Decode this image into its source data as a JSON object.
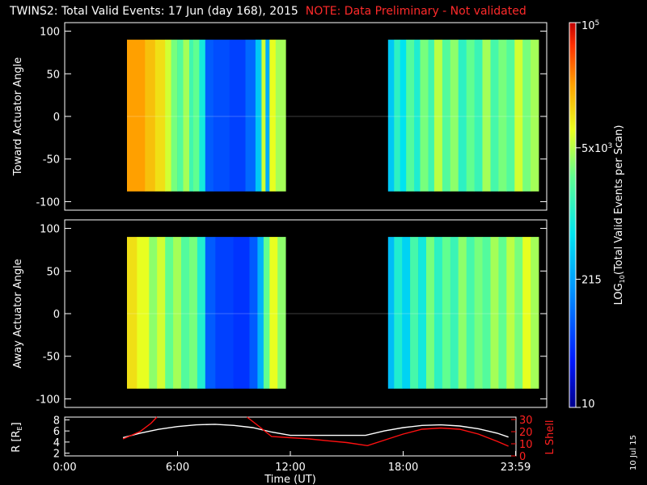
{
  "header": {
    "title": "TWINS2: Total Valid Events: 17 Jun (day 168), 2015",
    "note": "NOTE: Data Preliminary - Not validated"
  },
  "colors": {
    "background": "#000000",
    "note": "#ff2020",
    "lshell": "#ff1010",
    "radius": "#ffffff"
  },
  "side_label": "10 Jul 15",
  "chart_data": [
    {
      "type": "heatmap",
      "name": "toward",
      "ylabel": "Toward Actuator Angle",
      "ylim": [
        -110,
        110
      ],
      "yticks": [
        100,
        50,
        0,
        -50,
        -100
      ],
      "xlim": [
        0,
        24
      ],
      "data_extent": {
        "angle": [
          -88,
          90
        ]
      },
      "gaps": [
        [
          0,
          3.1
        ],
        [
          11.0,
          16.1
        ],
        [
          23.6,
          24
        ]
      ],
      "columns": [
        {
          "t0": 3.1,
          "t1": 4.0,
          "level": 0.84
        },
        {
          "t0": 4.0,
          "t1": 4.5,
          "level": 0.8
        },
        {
          "t0": 4.5,
          "t1": 5.0,
          "level": 0.76
        },
        {
          "t0": 5.0,
          "t1": 5.3,
          "level": 0.7
        },
        {
          "t0": 5.3,
          "t1": 5.6,
          "level": 0.62
        },
        {
          "t0": 5.6,
          "t1": 5.9,
          "level": 0.58
        },
        {
          "t0": 5.9,
          "t1": 6.2,
          "level": 0.66
        },
        {
          "t0": 6.2,
          "t1": 6.4,
          "level": 0.55
        },
        {
          "t0": 6.4,
          "t1": 6.7,
          "level": 0.6
        },
        {
          "t0": 6.7,
          "t1": 7.0,
          "level": 0.48
        },
        {
          "t0": 7.0,
          "t1": 7.4,
          "level": 0.22
        },
        {
          "t0": 7.4,
          "t1": 8.2,
          "level": 0.2
        },
        {
          "t0": 8.2,
          "t1": 9.0,
          "level": 0.18
        },
        {
          "t0": 9.0,
          "t1": 9.5,
          "level": 0.24
        },
        {
          "t0": 9.5,
          "t1": 9.8,
          "level": 0.4
        },
        {
          "t0": 9.8,
          "t1": 10.0,
          "level": 0.7
        },
        {
          "t0": 10.0,
          "t1": 10.2,
          "level": 0.35
        },
        {
          "t0": 10.2,
          "t1": 10.5,
          "level": 0.72
        },
        {
          "t0": 10.5,
          "t1": 11.0,
          "level": 0.66
        },
        {
          "t0": 16.1,
          "t1": 16.4,
          "level": 0.4
        },
        {
          "t0": 16.4,
          "t1": 16.7,
          "level": 0.52
        },
        {
          "t0": 16.7,
          "t1": 17.0,
          "level": 0.45
        },
        {
          "t0": 17.0,
          "t1": 17.4,
          "level": 0.58
        },
        {
          "t0": 17.4,
          "t1": 17.7,
          "level": 0.5
        },
        {
          "t0": 17.7,
          "t1": 18.1,
          "level": 0.62
        },
        {
          "t0": 18.1,
          "t1": 18.4,
          "level": 0.55
        },
        {
          "t0": 18.4,
          "t1": 18.8,
          "level": 0.68
        },
        {
          "t0": 18.8,
          "t1": 19.2,
          "level": 0.58
        },
        {
          "t0": 19.2,
          "t1": 19.6,
          "level": 0.64
        },
        {
          "t0": 19.6,
          "t1": 20.0,
          "level": 0.52
        },
        {
          "t0": 20.0,
          "t1": 20.4,
          "level": 0.6
        },
        {
          "t0": 20.4,
          "t1": 20.8,
          "level": 0.54
        },
        {
          "t0": 20.8,
          "t1": 21.2,
          "level": 0.66
        },
        {
          "t0": 21.2,
          "t1": 21.6,
          "level": 0.56
        },
        {
          "t0": 21.6,
          "t1": 22.0,
          "level": 0.62
        },
        {
          "t0": 22.0,
          "t1": 22.4,
          "level": 0.58
        },
        {
          "t0": 22.4,
          "t1": 22.8,
          "level": 0.7
        },
        {
          "t0": 22.8,
          "t1": 23.2,
          "level": 0.62
        },
        {
          "t0": 23.2,
          "t1": 23.6,
          "level": 0.66
        }
      ]
    },
    {
      "type": "heatmap",
      "name": "away",
      "ylabel": "Away Actuator Angle",
      "ylim": [
        -110,
        110
      ],
      "yticks": [
        100,
        50,
        0,
        -50,
        -100
      ],
      "xlim": [
        0,
        24
      ],
      "data_extent": {
        "angle": [
          -88,
          90
        ]
      },
      "gaps": [
        [
          0,
          3.1
        ],
        [
          11.0,
          16.1
        ],
        [
          23.6,
          24
        ]
      ],
      "columns": [
        {
          "t0": 3.1,
          "t1": 3.6,
          "level": 0.76
        },
        {
          "t0": 3.6,
          "t1": 4.2,
          "level": 0.72
        },
        {
          "t0": 4.2,
          "t1": 4.6,
          "level": 0.64
        },
        {
          "t0": 4.6,
          "t1": 5.0,
          "level": 0.7
        },
        {
          "t0": 5.0,
          "t1": 5.4,
          "level": 0.6
        },
        {
          "t0": 5.4,
          "t1": 5.8,
          "level": 0.66
        },
        {
          "t0": 5.8,
          "t1": 6.2,
          "level": 0.58
        },
        {
          "t0": 6.2,
          "t1": 6.6,
          "level": 0.62
        },
        {
          "t0": 6.6,
          "t1": 7.0,
          "level": 0.5
        },
        {
          "t0": 7.0,
          "t1": 7.5,
          "level": 0.22
        },
        {
          "t0": 7.5,
          "t1": 8.4,
          "level": 0.18
        },
        {
          "t0": 8.4,
          "t1": 9.2,
          "level": 0.16
        },
        {
          "t0": 9.2,
          "t1": 9.6,
          "level": 0.22
        },
        {
          "t0": 9.6,
          "t1": 9.9,
          "level": 0.36
        },
        {
          "t0": 9.9,
          "t1": 10.2,
          "level": 0.6
        },
        {
          "t0": 10.2,
          "t1": 10.6,
          "level": 0.72
        },
        {
          "t0": 10.6,
          "t1": 11.0,
          "level": 0.64
        },
        {
          "t0": 16.1,
          "t1": 16.4,
          "level": 0.38
        },
        {
          "t0": 16.4,
          "t1": 16.8,
          "level": 0.5
        },
        {
          "t0": 16.8,
          "t1": 17.2,
          "level": 0.42
        },
        {
          "t0": 17.2,
          "t1": 17.6,
          "level": 0.56
        },
        {
          "t0": 17.6,
          "t1": 18.0,
          "level": 0.48
        },
        {
          "t0": 18.0,
          "t1": 18.4,
          "level": 0.62
        },
        {
          "t0": 18.4,
          "t1": 18.8,
          "level": 0.52
        },
        {
          "t0": 18.8,
          "t1": 19.2,
          "level": 0.6
        },
        {
          "t0": 19.2,
          "t1": 19.6,
          "level": 0.54
        },
        {
          "t0": 19.6,
          "t1": 20.0,
          "level": 0.64
        },
        {
          "t0": 20.0,
          "t1": 20.4,
          "level": 0.56
        },
        {
          "t0": 20.4,
          "t1": 20.8,
          "level": 0.62
        },
        {
          "t0": 20.8,
          "t1": 21.2,
          "level": 0.58
        },
        {
          "t0": 21.2,
          "t1": 21.6,
          "level": 0.66
        },
        {
          "t0": 21.6,
          "t1": 22.0,
          "level": 0.6
        },
        {
          "t0": 22.0,
          "t1": 22.4,
          "level": 0.68
        },
        {
          "t0": 22.4,
          "t1": 22.8,
          "level": 0.62
        },
        {
          "t0": 22.8,
          "t1": 23.2,
          "level": 0.72
        },
        {
          "t0": 23.2,
          "t1": 23.6,
          "level": 0.66
        }
      ]
    },
    {
      "type": "line",
      "name": "orbit",
      "xlabel": "Time (UT)",
      "xticks": [
        "0:00",
        "6:00",
        "12:00",
        "18:00",
        "23:59"
      ],
      "xtick_values": [
        0,
        6,
        12,
        18,
        23.98
      ],
      "xlim": [
        0,
        24
      ],
      "ylabel_left": "R [R",
      "ylabel_left_sub": "E",
      "ylabel_left_close": "]",
      "ylim_left": [
        1.5,
        8.5
      ],
      "yticks_left": [
        8,
        6,
        4,
        2
      ],
      "ylabel_right": "L Shell",
      "ylim_right": [
        0,
        32
      ],
      "yticks_right": [
        30,
        20,
        10,
        0
      ],
      "series": [
        {
          "name": "R",
          "axis": "left",
          "x": [
            3.1,
            4,
            5,
            6,
            7,
            8,
            9,
            10,
            11,
            12,
            13,
            14,
            15,
            16,
            17,
            18,
            19,
            20,
            21,
            22,
            23,
            23.6
          ],
          "y": [
            4.8,
            5.6,
            6.3,
            6.8,
            7.1,
            7.2,
            7.0,
            6.6,
            5.8,
            5.2,
            5.2,
            5.2,
            5.2,
            5.2,
            6.0,
            6.6,
            7.0,
            7.1,
            6.9,
            6.4,
            5.6,
            4.9
          ]
        },
        {
          "name": "L Shell",
          "axis": "right",
          "x": [
            3.1,
            4,
            4.6,
            4.9,
            null,
            9.7,
            10.2,
            11.0,
            12,
            13,
            14,
            15,
            16.1,
            17,
            18,
            19,
            20,
            21,
            22,
            23,
            23.6
          ],
          "y": [
            14,
            20,
            27,
            32,
            null,
            32,
            26,
            16,
            15,
            14,
            12.5,
            11,
            8.5,
            13,
            18,
            22,
            23,
            22,
            18,
            12,
            8
          ]
        }
      ]
    }
  ],
  "colorbar": {
    "label_main": "LOG",
    "label_sub": "10",
    "label_rest": "(Total Valid Events per Scan)",
    "ticks": [
      {
        "base": "10",
        "exp": "5",
        "value": 100000
      },
      {
        "base": "5x10",
        "exp": "3",
        "value": 5000
      },
      {
        "base": "215",
        "exp": "",
        "value": 215
      },
      {
        "base": "10",
        "exp": "",
        "value": 10
      }
    ],
    "range": [
      10,
      100000
    ]
  }
}
